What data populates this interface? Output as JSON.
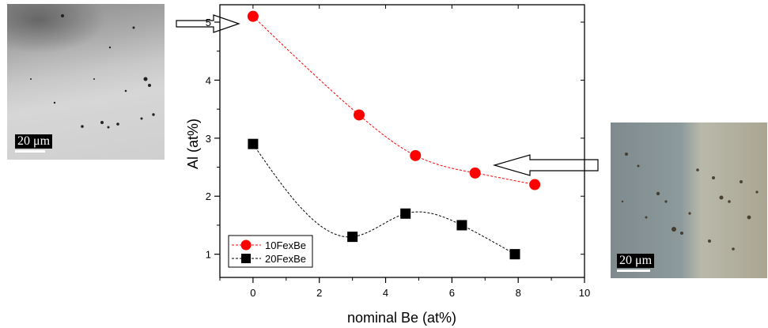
{
  "left_image": {
    "scale_label": "20 μm"
  },
  "right_image": {
    "scale_label": "20 μm"
  },
  "chart_data": {
    "type": "scatter",
    "xlabel": "nominal Be (at%)",
    "ylabel": "Al (at%)",
    "xlim": [
      -1,
      10
    ],
    "ylim": [
      0.6,
      5.3
    ],
    "x_ticks": [
      0,
      2,
      4,
      6,
      8,
      10
    ],
    "y_ticks": [
      1,
      2,
      3,
      4,
      5
    ],
    "grid": false,
    "legend_position": "bottom-left",
    "series": [
      {
        "name": "10FexBe",
        "marker": "circle",
        "color": "#ff0000",
        "x": [
          0,
          3.2,
          4.9,
          6.7,
          8.5
        ],
        "y": [
          5.1,
          3.4,
          2.7,
          2.4,
          2.2
        ]
      },
      {
        "name": "20FexBe",
        "marker": "square",
        "color": "#000000",
        "x": [
          0,
          3.0,
          4.6,
          6.3,
          7.9
        ],
        "y": [
          2.9,
          1.3,
          1.7,
          1.5,
          1.0
        ]
      }
    ]
  }
}
